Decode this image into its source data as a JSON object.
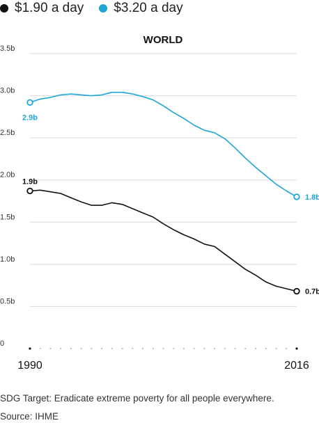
{
  "legend": [
    {
      "label": "$1.90 a day",
      "color": "#111111"
    },
    {
      "label": "$3.20 a day",
      "color": "#1ba6d6"
    }
  ],
  "chart_data": {
    "type": "line",
    "title": "WORLD",
    "xlabel": "",
    "ylabel": "",
    "xlim": [
      1990,
      2016
    ],
    "ylim": [
      0,
      3.5
    ],
    "yticks": [
      0,
      0.5,
      1.0,
      1.5,
      2.0,
      2.5,
      3.0,
      3.5
    ],
    "ytick_labels": [
      "0",
      "0.5b",
      "1.0b",
      "1.5b",
      "2.0b",
      "2.5b",
      "3.0b",
      "3.5b"
    ],
    "xtick_labels": [
      {
        "x": 1990,
        "label": "1990"
      },
      {
        "x": 2016,
        "label": "2016"
      }
    ],
    "grid": true,
    "legend_position": "top-left",
    "x": [
      1990,
      1991,
      1992,
      1993,
      1994,
      1995,
      1996,
      1997,
      1998,
      1999,
      2000,
      2001,
      2002,
      2003,
      2004,
      2005,
      2006,
      2007,
      2008,
      2009,
      2010,
      2011,
      2012,
      2013,
      2014,
      2015,
      2016
    ],
    "series": [
      {
        "name": "$1.90 a day",
        "color": "#111111",
        "values": [
          1.87,
          1.88,
          1.86,
          1.84,
          1.79,
          1.74,
          1.7,
          1.7,
          1.73,
          1.71,
          1.66,
          1.61,
          1.56,
          1.48,
          1.41,
          1.35,
          1.3,
          1.24,
          1.21,
          1.12,
          1.03,
          0.94,
          0.87,
          0.79,
          0.74,
          0.71,
          0.68
        ],
        "start_label": "1.9b",
        "end_label": "0.7b"
      },
      {
        "name": "$3.20 a day",
        "color": "#1ba6d6",
        "values": [
          2.92,
          2.96,
          2.98,
          3.01,
          3.02,
          3.01,
          3.0,
          3.01,
          3.04,
          3.04,
          3.02,
          2.99,
          2.95,
          2.88,
          2.8,
          2.73,
          2.65,
          2.59,
          2.56,
          2.49,
          2.38,
          2.26,
          2.15,
          2.05,
          1.95,
          1.87,
          1.8
        ],
        "start_label": "2.9b",
        "end_label": "1.8b"
      }
    ]
  },
  "notes": {
    "target": "SDG Target: Eradicate extreme poverty for all people everywhere.",
    "source": "Source: IHME"
  }
}
